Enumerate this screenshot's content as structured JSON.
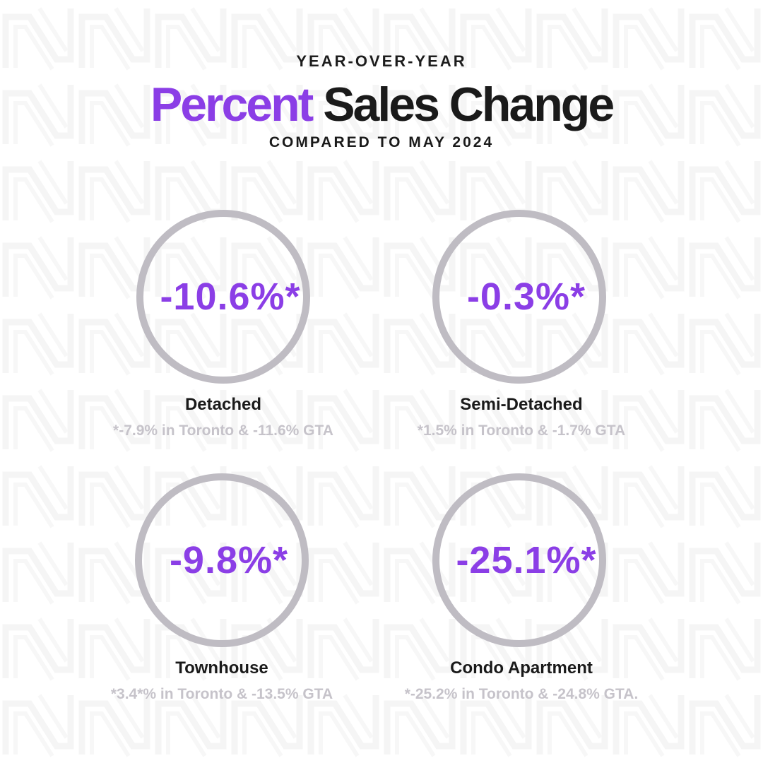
{
  "header": {
    "eyebrow": "YEAR-OVER-YEAR",
    "title_accent": "Percent",
    "title_main": " Sales Change",
    "subtitle": "COMPARED TO MAY 2024"
  },
  "colors": {
    "accent": "#8b3ee6",
    "ring": "#bfbcc3",
    "text": "#1a1a1a",
    "note": "#c6c3ca"
  },
  "stats": [
    {
      "value": "-10.6%*",
      "label": "Detached",
      "note": "*-7.9% in Toronto & -11.6% GTA"
    },
    {
      "value": "-0.3%*",
      "label": "Semi-Detached",
      "note": "*1.5% in Toronto & -1.7% GTA"
    },
    {
      "value": "-9.8%*",
      "label": "Townhouse",
      "note": "*3.4*% in Toronto & -13.5% GTA"
    },
    {
      "value": "-25.1%*",
      "label": "Condo Apartment",
      "note": "*-25.2% in Toronto & -24.8% GTA."
    }
  ]
}
